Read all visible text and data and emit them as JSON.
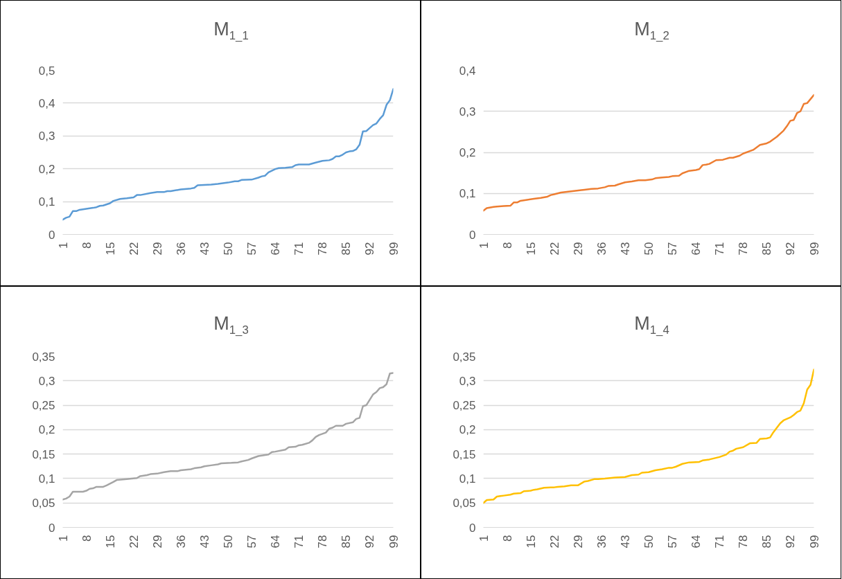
{
  "chart_data": [
    {
      "type": "line",
      "title": "M$_{1_1}$",
      "x": [
        1,
        2,
        3,
        4,
        5,
        6,
        8,
        10,
        11,
        12,
        13,
        15,
        16,
        18,
        20,
        22,
        23,
        24,
        27,
        29,
        31,
        32,
        33,
        36,
        39,
        40,
        41,
        45,
        47,
        50,
        52,
        53,
        54,
        57,
        59,
        60,
        61,
        62,
        64,
        65,
        67,
        69,
        70,
        71,
        74,
        76,
        78,
        80,
        81,
        82,
        83,
        84,
        85,
        86,
        87,
        88,
        89,
        90,
        91,
        92,
        93,
        94,
        95,
        96,
        97,
        98,
        99
      ],
      "series": [
        {
          "color": "#5b9bd5",
          "values": [
            0.045,
            0.051,
            0.054,
            0.071,
            0.071,
            0.075,
            0.078,
            0.081,
            0.083,
            0.087,
            0.088,
            0.095,
            0.102,
            0.108,
            0.11,
            0.113,
            0.12,
            0.12,
            0.126,
            0.129,
            0.129,
            0.132,
            0.132,
            0.137,
            0.14,
            0.142,
            0.15,
            0.152,
            0.154,
            0.158,
            0.162,
            0.162,
            0.166,
            0.167,
            0.173,
            0.177,
            0.179,
            0.189,
            0.199,
            0.202,
            0.203,
            0.205,
            0.211,
            0.213,
            0.213,
            0.219,
            0.224,
            0.226,
            0.23,
            0.238,
            0.238,
            0.243,
            0.25,
            0.253,
            0.254,
            0.259,
            0.273,
            0.314,
            0.315,
            0.324,
            0.333,
            0.338,
            0.352,
            0.363,
            0.395,
            0.409,
            0.443
          ]
        }
      ],
      "xlim": [
        1,
        99
      ],
      "xticks": [
        1,
        8,
        15,
        22,
        29,
        36,
        43,
        50,
        57,
        64,
        71,
        78,
        85,
        92,
        99
      ],
      "ylim": [
        0,
        0.5
      ],
      "yticks": [
        {
          "value": 0,
          "label": "0"
        },
        {
          "value": 0.1,
          "label": "0,1"
        },
        {
          "value": 0.2,
          "label": "0,2"
        },
        {
          "value": 0.3,
          "label": "0,3"
        },
        {
          "value": 0.4,
          "label": "0,4"
        },
        {
          "value": 0.5,
          "label": "0,5"
        }
      ],
      "grid": "y",
      "marker": "none",
      "line_style": "solid"
    },
    {
      "type": "line",
      "title": "M$_{1_2}$",
      "x": [
        1,
        2,
        4,
        5,
        7,
        9,
        10,
        11,
        12,
        16,
        18,
        20,
        21,
        22,
        24,
        27,
        30,
        31,
        33,
        35,
        37,
        38,
        40,
        41,
        43,
        45,
        47,
        49,
        51,
        52,
        54,
        56,
        57,
        59,
        60,
        62,
        64,
        65,
        66,
        67,
        68,
        70,
        72,
        74,
        75,
        77,
        78,
        81,
        83,
        85,
        86,
        88,
        90,
        91,
        92,
        93,
        94,
        95,
        96,
        97,
        99
      ],
      "series": [
        {
          "color": "#ed7d31",
          "values": [
            0.058,
            0.064,
            0.067,
            0.068,
            0.069,
            0.07,
            0.078,
            0.078,
            0.082,
            0.087,
            0.089,
            0.092,
            0.096,
            0.098,
            0.102,
            0.105,
            0.108,
            0.109,
            0.111,
            0.112,
            0.115,
            0.118,
            0.119,
            0.122,
            0.127,
            0.129,
            0.132,
            0.132,
            0.134,
            0.137,
            0.139,
            0.14,
            0.142,
            0.143,
            0.149,
            0.155,
            0.157,
            0.159,
            0.169,
            0.17,
            0.172,
            0.181,
            0.182,
            0.187,
            0.187,
            0.192,
            0.197,
            0.206,
            0.218,
            0.222,
            0.226,
            0.238,
            0.253,
            0.264,
            0.277,
            0.279,
            0.296,
            0.3,
            0.318,
            0.32,
            0.34
          ]
        }
      ],
      "xlim": [
        1,
        99
      ],
      "xticks": [
        1,
        8,
        15,
        22,
        29,
        36,
        43,
        50,
        57,
        64,
        71,
        78,
        85,
        92,
        99
      ],
      "ylim": [
        0,
        0.4
      ],
      "yticks": [
        {
          "value": 0,
          "label": "0"
        },
        {
          "value": 0.1,
          "label": "0,1"
        },
        {
          "value": 0.2,
          "label": "0,2"
        },
        {
          "value": 0.3,
          "label": "0,3"
        },
        {
          "value": 0.4,
          "label": "0,4"
        }
      ],
      "grid": "y",
      "marker": "none",
      "line_style": "solid"
    },
    {
      "type": "line",
      "title": "M$_{1_3}$",
      "x": [
        1,
        2,
        3,
        4,
        7,
        8,
        9,
        10,
        11,
        13,
        14,
        16,
        17,
        20,
        23,
        24,
        26,
        27,
        29,
        31,
        33,
        35,
        36,
        39,
        40,
        42,
        43,
        45,
        47,
        48,
        51,
        53,
        54,
        56,
        57,
        59,
        60,
        62,
        63,
        64,
        67,
        68,
        70,
        71,
        72,
        74,
        75,
        76,
        77,
        79,
        80,
        81,
        82,
        84,
        85,
        87,
        88,
        89,
        90,
        91,
        93,
        94,
        95,
        96,
        97,
        98,
        99
      ],
      "series": [
        {
          "color": "#a5a5a5",
          "values": [
            0.057,
            0.059,
            0.063,
            0.073,
            0.073,
            0.075,
            0.079,
            0.08,
            0.083,
            0.083,
            0.086,
            0.093,
            0.097,
            0.099,
            0.101,
            0.105,
            0.107,
            0.109,
            0.11,
            0.113,
            0.115,
            0.115,
            0.117,
            0.119,
            0.121,
            0.123,
            0.125,
            0.127,
            0.129,
            0.131,
            0.132,
            0.133,
            0.135,
            0.138,
            0.141,
            0.146,
            0.147,
            0.149,
            0.154,
            0.155,
            0.159,
            0.164,
            0.165,
            0.168,
            0.169,
            0.173,
            0.178,
            0.185,
            0.189,
            0.194,
            0.202,
            0.204,
            0.208,
            0.208,
            0.212,
            0.215,
            0.222,
            0.224,
            0.248,
            0.25,
            0.272,
            0.277,
            0.285,
            0.287,
            0.293,
            0.315,
            0.316
          ]
        }
      ],
      "xlim": [
        1,
        99
      ],
      "xticks": [
        1,
        8,
        15,
        22,
        29,
        36,
        43,
        50,
        57,
        64,
        71,
        78,
        85,
        92,
        99
      ],
      "ylim": [
        0,
        0.35
      ],
      "yticks": [
        {
          "value": 0,
          "label": "0"
        },
        {
          "value": 0.05,
          "label": "0,05"
        },
        {
          "value": 0.1,
          "label": "0,1"
        },
        {
          "value": 0.15,
          "label": "0,15"
        },
        {
          "value": 0.2,
          "label": "0,2"
        },
        {
          "value": 0.25,
          "label": "0,25"
        },
        {
          "value": 0.3,
          "label": "0,3"
        },
        {
          "value": 0.35,
          "label": "0,35"
        }
      ],
      "grid": "y",
      "marker": "none",
      "line_style": "solid"
    },
    {
      "type": "line",
      "title": "M$_{1_4}$",
      "x": [
        1,
        2,
        4,
        5,
        6,
        7,
        9,
        10,
        12,
        13,
        15,
        16,
        17,
        19,
        21,
        22,
        23,
        25,
        27,
        29,
        31,
        32,
        34,
        35,
        37,
        40,
        43,
        45,
        47,
        48,
        50,
        52,
        54,
        56,
        57,
        58,
        60,
        62,
        65,
        66,
        68,
        71,
        73,
        74,
        75,
        76,
        78,
        80,
        82,
        83,
        85,
        86,
        87,
        89,
        90,
        92,
        93,
        94,
        95,
        96,
        97,
        98,
        99
      ],
      "series": [
        {
          "color": "#ffc000",
          "values": [
            0.05,
            0.056,
            0.057,
            0.063,
            0.064,
            0.065,
            0.067,
            0.069,
            0.07,
            0.074,
            0.075,
            0.077,
            0.078,
            0.081,
            0.082,
            0.082,
            0.083,
            0.084,
            0.086,
            0.086,
            0.094,
            0.095,
            0.099,
            0.099,
            0.1,
            0.102,
            0.103,
            0.107,
            0.108,
            0.112,
            0.113,
            0.117,
            0.119,
            0.122,
            0.122,
            0.124,
            0.13,
            0.133,
            0.134,
            0.137,
            0.139,
            0.144,
            0.149,
            0.155,
            0.157,
            0.161,
            0.164,
            0.172,
            0.173,
            0.181,
            0.182,
            0.184,
            0.195,
            0.213,
            0.219,
            0.225,
            0.23,
            0.236,
            0.239,
            0.254,
            0.282,
            0.292,
            0.323
          ]
        }
      ],
      "xlim": [
        1,
        99
      ],
      "xticks": [
        1,
        8,
        15,
        22,
        29,
        36,
        43,
        50,
        57,
        64,
        71,
        78,
        85,
        92,
        99
      ],
      "ylim": [
        0,
        0.35
      ],
      "yticks": [
        {
          "value": 0,
          "label": "0"
        },
        {
          "value": 0.05,
          "label": "0,05"
        },
        {
          "value": 0.1,
          "label": "0,1"
        },
        {
          "value": 0.15,
          "label": "0,15"
        },
        {
          "value": 0.2,
          "label": "0,2"
        },
        {
          "value": 0.25,
          "label": "0,25"
        },
        {
          "value": 0.3,
          "label": "0,3"
        },
        {
          "value": 0.35,
          "label": "0,35"
        }
      ],
      "grid": "y",
      "marker": "none",
      "line_style": "solid"
    }
  ]
}
